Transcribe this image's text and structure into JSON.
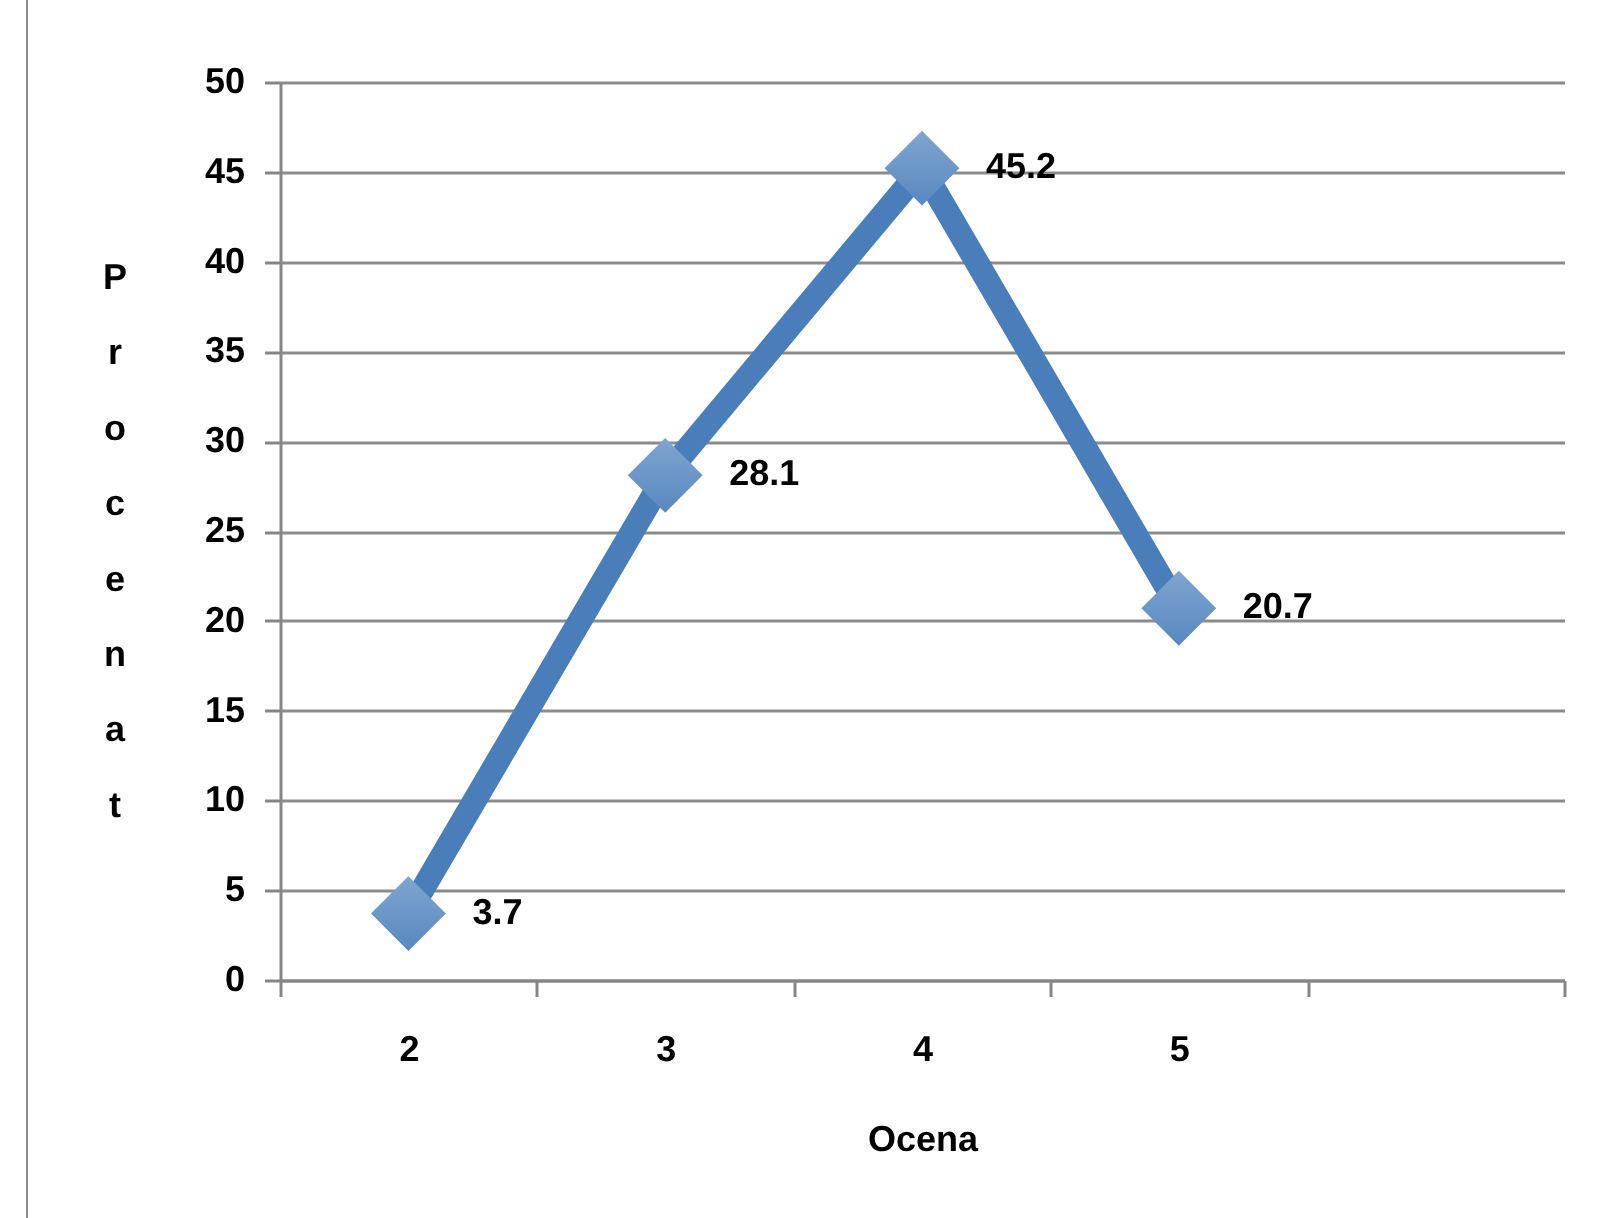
{
  "chart_data": {
    "type": "line",
    "xlabel": "Ocena",
    "ylabel": "Procenat",
    "categories": [
      "2",
      "3",
      "4",
      "5",
      null
    ],
    "series": [
      {
        "color": "#4a7ebb",
        "values": [
          3.7,
          28.1,
          45.2,
          20.7,
          null
        ]
      }
    ],
    "ylim": [
      0,
      50
    ],
    "yticks": [
      0,
      5,
      10,
      15,
      20,
      25,
      30,
      35,
      40,
      45,
      50
    ],
    "grid": "y",
    "marker": "diamond",
    "data_labels": true
  }
}
